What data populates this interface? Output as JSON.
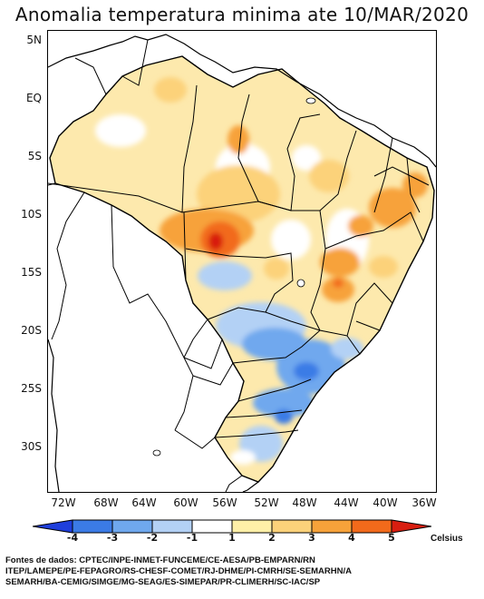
{
  "title": "Anomalia temperatura minima ate 10/MAR/2020",
  "y_ticks": [
    "5N",
    "EQ",
    "5S",
    "10S",
    "15S",
    "20S",
    "25S",
    "30S"
  ],
  "x_ticks": [
    "72W",
    "68W",
    "64W",
    "60W",
    "56W",
    "52W",
    "48W",
    "44W",
    "40W",
    "36W"
  ],
  "colorbar": {
    "labels": [
      "-4",
      "-3",
      "-2",
      "-1",
      "1",
      "2",
      "3",
      "4",
      "5"
    ],
    "unit": "Celsius",
    "colors": [
      "#1f3fdc",
      "#3b7be6",
      "#6fa8ee",
      "#b3d1f5",
      "#ffffff",
      "#fff0a8",
      "#fcd27a",
      "#f7a23a",
      "#f26a1b",
      "#d81e10"
    ]
  },
  "sources": [
    "Fontes de dados: CPTEC/INPE-INMET-FUNCEME/CE-AESA/PB-EMPARN/RN",
    "ITEP/LAMEPE/PE-FEPAGRO/RS-CHESF-COMET/RJ-DHME/PI-CMRH/SE-SEMARHN/A",
    "SEMARH/BA-CEMIG/SIMGE/MG-SEAG/ES-SIMEPAR/PR-CLIMERH/SC-IAC/SP"
  ]
}
